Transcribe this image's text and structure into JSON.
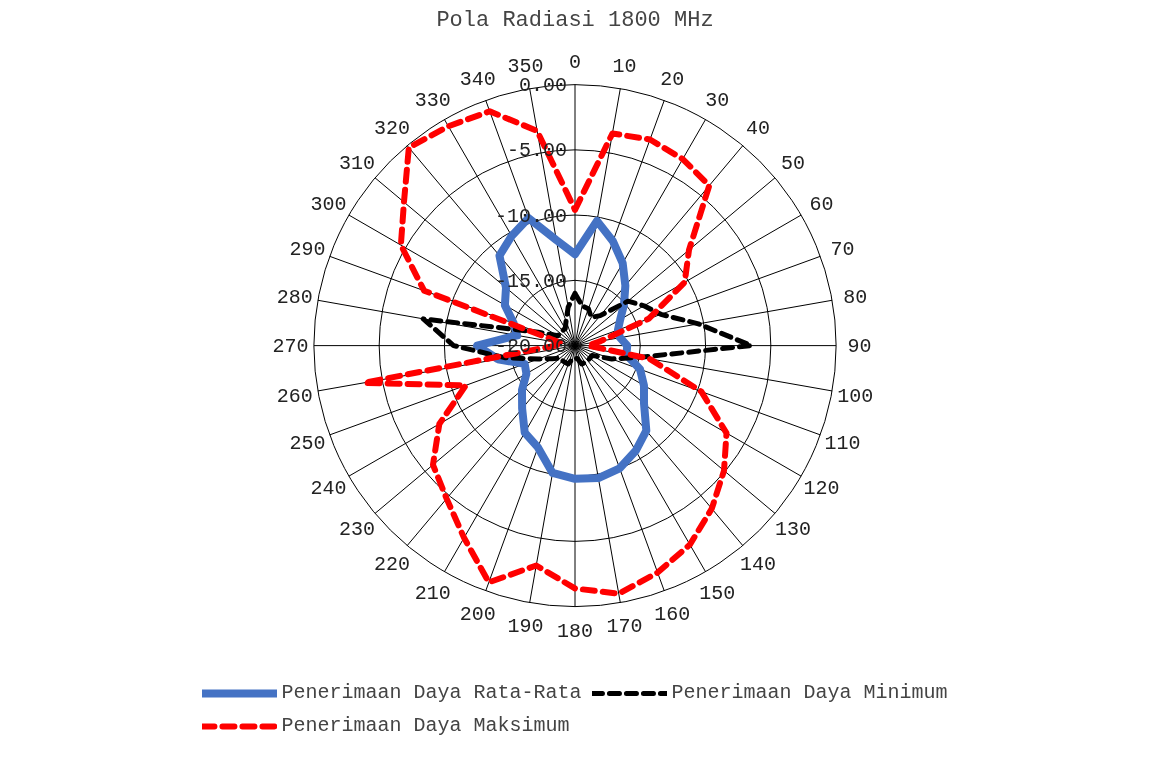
{
  "chart_data": {
    "type": "radar",
    "title": "Pola Radiasi 1800 MHz",
    "categories": [
      "0",
      "10",
      "20",
      "30",
      "40",
      "50",
      "60",
      "70",
      "80",
      "90",
      "100",
      "110",
      "120",
      "130",
      "140",
      "150",
      "160",
      "170",
      "180",
      "190",
      "200",
      "210",
      "220",
      "230",
      "240",
      "250",
      "260",
      "270",
      "280",
      "290",
      "300",
      "310",
      "320",
      "330",
      "340",
      "350"
    ],
    "ylim": [
      -20,
      0
    ],
    "yticks": [
      {
        "value": -20,
        "label": "-20.00"
      },
      {
        "value": -15,
        "label": "-15.00"
      },
      {
        "value": -10,
        "label": "-10.00"
      },
      {
        "value": -5,
        "label": "-5.00"
      },
      {
        "value": 0,
        "label": "0.00"
      }
    ],
    "grid": true,
    "legend": "bottom",
    "marker": "none",
    "series": [
      {
        "name": "Penerimaan Daya Rata-Rata",
        "color": "#4472c4",
        "line_style": "solid",
        "values": [
          -13.0,
          -10.3,
          -11.5,
          -12.7,
          -14.0,
          -15.1,
          -16.0,
          -16.5,
          -16.5,
          -16.0,
          -16.0,
          -14.7,
          -13.9,
          -13.1,
          -11.5,
          -10.7,
          -10.0,
          -9.7,
          -9.8,
          -10.1,
          -11.7,
          -12.3,
          -13.7,
          -14.7,
          -15.7,
          -15.9,
          -14.0,
          -12.5,
          -15.5,
          -15.0,
          -13.8,
          -13.1,
          -11.0,
          -10.3,
          -9.6,
          -11.8
        ]
      },
      {
        "name": "Penerimaan Daya Minimum",
        "color": "#000000",
        "line_style": "dashed",
        "values": [
          -16.0,
          -16.9,
          -17.0,
          -17.5,
          -17.0,
          -14.7,
          -13.9,
          -13.0,
          -10.4,
          -6.5,
          -14.9,
          -17.0,
          -18.5,
          -18.5,
          -18.5,
          -18.5,
          -18.5,
          -19.0,
          -19.0,
          -19.0,
          -18.5,
          -18.5,
          -18.5,
          -18.5,
          -18.0,
          -17.0,
          -14.6,
          -10.7,
          -8.2,
          -17.0,
          -18.5,
          -18.5,
          -18.5,
          -18.5,
          -18.0,
          -17.0
        ]
      },
      {
        "name": "Penerimaan Daya Maksimum",
        "color": "#ff0000",
        "line_style": "dashed",
        "values": [
          -9.6,
          -3.5,
          -3.2,
          -3.5,
          -4.0,
          -8.6,
          -10.3,
          -14.0,
          -18.0,
          -19.0,
          -14.2,
          -9.7,
          -6.6,
          -5.1,
          -3.7,
          -2.4,
          -1.5,
          -0.7,
          -1.4,
          -2.9,
          -0.7,
          -3.0,
          -4.7,
          -5.8,
          -8.0,
          -11.1,
          -3.6,
          -18.5,
          -19.0,
          -7.7,
          -4.6,
          -2.9,
          -0.2,
          -0.6,
          -0.9,
          -3.3
        ]
      }
    ]
  }
}
